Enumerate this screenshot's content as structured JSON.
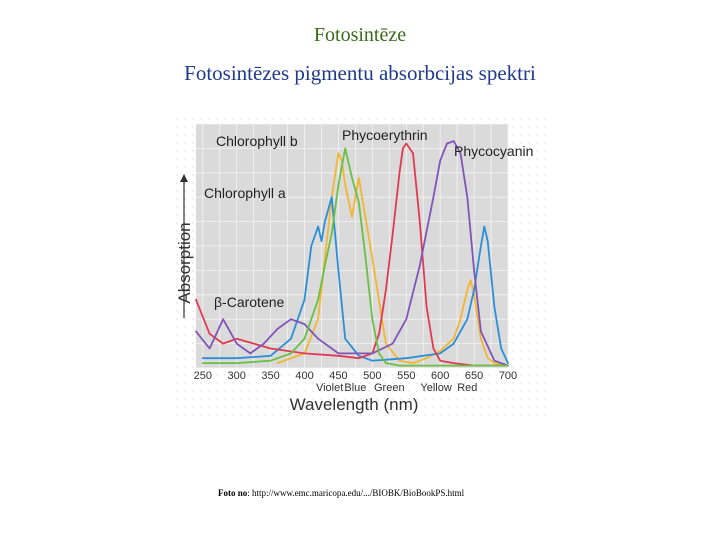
{
  "page": {
    "title": "Fotosintēze",
    "subtitle": "Fotosintēzes pigmentu absorbcijas spektri",
    "footer_label": "Foto no",
    "footer_url": ": http://www.emc.maricopa.edu/.../BIOBK/BioBookPS.html"
  },
  "chart_data": {
    "type": "line",
    "xlabel": "Wavelength (nm)",
    "ylabel": "Absorption",
    "xlim": [
      240,
      700
    ],
    "ylim": [
      0,
      100
    ],
    "x_ticks": [
      "250",
      "300",
      "350",
      "400",
      "450",
      "500",
      "550",
      "600",
      "650",
      "700"
    ],
    "color_band_labels": [
      "Violet",
      "Blue",
      "Green",
      "Yellow",
      "Red"
    ],
    "grid": true,
    "series": [
      {
        "name": "Chlorophyll b",
        "color": "#f2b632",
        "x": [
          360,
          400,
          420,
          430,
          440,
          450,
          455,
          460,
          470,
          480,
          500,
          520,
          540,
          560,
          580,
          600,
          620,
          630,
          640,
          645,
          650,
          660,
          670,
          680,
          700
        ],
        "y": [
          2,
          6,
          20,
          45,
          70,
          88,
          85,
          75,
          62,
          78,
          45,
          10,
          3,
          2,
          4,
          7,
          12,
          20,
          32,
          36,
          30,
          12,
          4,
          2,
          1
        ]
      },
      {
        "name": "Chlorophyll a",
        "color": "#2a8fd8",
        "x": [
          250,
          300,
          350,
          380,
          400,
          410,
          420,
          425,
          430,
          440,
          450,
          460,
          480,
          500,
          550,
          600,
          620,
          640,
          650,
          660,
          665,
          670,
          680,
          690,
          700
        ],
        "y": [
          4,
          4,
          5,
          12,
          28,
          50,
          58,
          52,
          60,
          70,
          40,
          12,
          5,
          3,
          4,
          6,
          10,
          20,
          32,
          50,
          58,
          52,
          25,
          8,
          2
        ]
      },
      {
        "name": "Phycoerythrin",
        "color": "#e03a50",
        "x": [
          240,
          260,
          280,
          300,
          350,
          400,
          450,
          480,
          500,
          510,
          520,
          530,
          540,
          545,
          550,
          560,
          570,
          580,
          590,
          600,
          620,
          650,
          700
        ],
        "y": [
          28,
          14,
          10,
          12,
          8,
          6,
          5,
          4,
          6,
          14,
          32,
          55,
          80,
          90,
          92,
          88,
          60,
          25,
          8,
          3,
          2,
          1,
          1
        ]
      },
      {
        "name": "Phycocyanin",
        "color": "#8055b8",
        "x": [
          240,
          260,
          280,
          300,
          320,
          340,
          360,
          380,
          400,
          420,
          450,
          500,
          530,
          550,
          570,
          590,
          600,
          610,
          620,
          630,
          640,
          650,
          660,
          680,
          700
        ],
        "y": [
          15,
          8,
          20,
          10,
          6,
          10,
          16,
          20,
          18,
          12,
          6,
          6,
          10,
          20,
          42,
          70,
          85,
          92,
          93,
          88,
          70,
          40,
          15,
          3,
          1
        ]
      },
      {
        "name": "β-Carotene",
        "color": "#6abf45",
        "x": [
          250,
          300,
          350,
          380,
          400,
          420,
          430,
          440,
          450,
          460,
          470,
          480,
          490,
          500,
          510,
          520,
          540,
          560,
          600,
          650,
          700
        ],
        "y": [
          2,
          2,
          3,
          6,
          12,
          28,
          42,
          55,
          75,
          90,
          78,
          68,
          45,
          20,
          6,
          2,
          1,
          1,
          1,
          1,
          1
        ]
      }
    ]
  }
}
